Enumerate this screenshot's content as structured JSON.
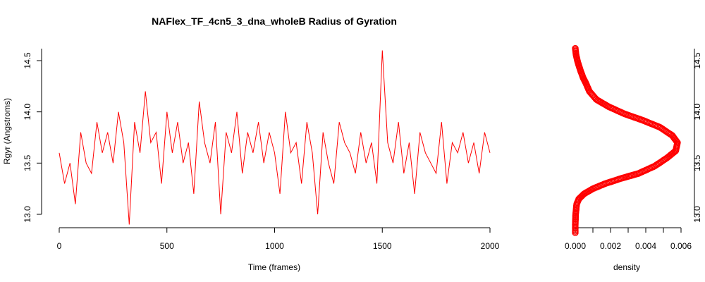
{
  "chart_data": [
    {
      "type": "line",
      "title": "NAFlex_TF_4cn5_3_dna_wholeB Radius of Gyration",
      "xlabel": "Time (frames)",
      "ylabel": "Rgyr (Angstroms)",
      "xlim": [
        0,
        2000
      ],
      "ylim": [
        12.9,
        14.6
      ],
      "xticks": [
        "0",
        "500",
        "1000",
        "1500",
        "2000"
      ],
      "yticks": [
        "13.0",
        "13.5",
        "14.0",
        "14.5"
      ],
      "color": "#ff0000",
      "grid": false,
      "series": [
        {
          "x": [
            0,
            25,
            50,
            75,
            100,
            125,
            150,
            175,
            200,
            225,
            250,
            275,
            300,
            325,
            350,
            375,
            400,
            425,
            450,
            475,
            500,
            525,
            550,
            575,
            600,
            625,
            650,
            675,
            700,
            725,
            750,
            775,
            800,
            825,
            850,
            875,
            900,
            925,
            950,
            975,
            1000,
            1025,
            1050,
            1075,
            1100,
            1125,
            1150,
            1175,
            1200,
            1225,
            1250,
            1275,
            1300,
            1325,
            1350,
            1375,
            1400,
            1425,
            1450,
            1475,
            1500,
            1525,
            1550,
            1575,
            1600,
            1625,
            1650,
            1675,
            1700,
            1725,
            1750,
            1775,
            1800,
            1825,
            1850,
            1875,
            1900,
            1925,
            1950,
            1975,
            2000
          ],
          "y": [
            13.6,
            13.3,
            13.5,
            13.1,
            13.8,
            13.5,
            13.4,
            13.9,
            13.6,
            13.8,
            13.5,
            14.0,
            13.7,
            12.9,
            13.9,
            13.6,
            14.2,
            13.7,
            13.8,
            13.3,
            14.0,
            13.6,
            13.9,
            13.5,
            13.7,
            13.2,
            14.1,
            13.7,
            13.5,
            13.9,
            13.0,
            13.8,
            13.6,
            14.0,
            13.4,
            13.8,
            13.6,
            13.9,
            13.5,
            13.8,
            13.6,
            13.2,
            14.0,
            13.6,
            13.7,
            13.3,
            13.9,
            13.6,
            13.0,
            13.8,
            13.5,
            13.3,
            13.9,
            13.7,
            13.6,
            13.4,
            13.8,
            13.5,
            13.7,
            13.3,
            14.6,
            13.7,
            13.5,
            13.9,
            13.4,
            13.7,
            13.2,
            13.8,
            13.6,
            13.5,
            13.4,
            13.9,
            13.3,
            13.7,
            13.6,
            13.8,
            13.5,
            13.7,
            13.4,
            13.8,
            13.6
          ]
        }
      ]
    },
    {
      "type": "line",
      "xlabel": "density",
      "ylabel": "",
      "xlim": [
        0,
        0.006
      ],
      "ylim": [
        12.9,
        14.6
      ],
      "xticks": [
        "0.000",
        "0.002",
        "0.004",
        "0.006"
      ],
      "yticks": [
        "13.0",
        "13.5",
        "14.0",
        "14.5"
      ],
      "color": "#ff0000",
      "grid": false,
      "series": [
        {
          "x": [
            0.0,
            0.0,
            2e-05,
            8e-05,
            0.0002,
            0.0005,
            0.001,
            0.0017,
            0.0026,
            0.0036,
            0.0045,
            0.0052,
            0.0057,
            0.0058,
            0.0055,
            0.0048,
            0.0038,
            0.0028,
            0.0019,
            0.0012,
            0.0008,
            0.0006,
            0.00045,
            0.0003,
            0.00015,
            5e-05,
            0.0
          ],
          "y": [
            12.82,
            12.9,
            13.0,
            13.1,
            13.15,
            13.2,
            13.25,
            13.3,
            13.35,
            13.4,
            13.47,
            13.55,
            13.62,
            13.7,
            13.77,
            13.85,
            13.92,
            13.98,
            14.05,
            14.12,
            14.2,
            14.28,
            14.33,
            14.4,
            14.48,
            14.55,
            14.62
          ]
        }
      ]
    }
  ]
}
